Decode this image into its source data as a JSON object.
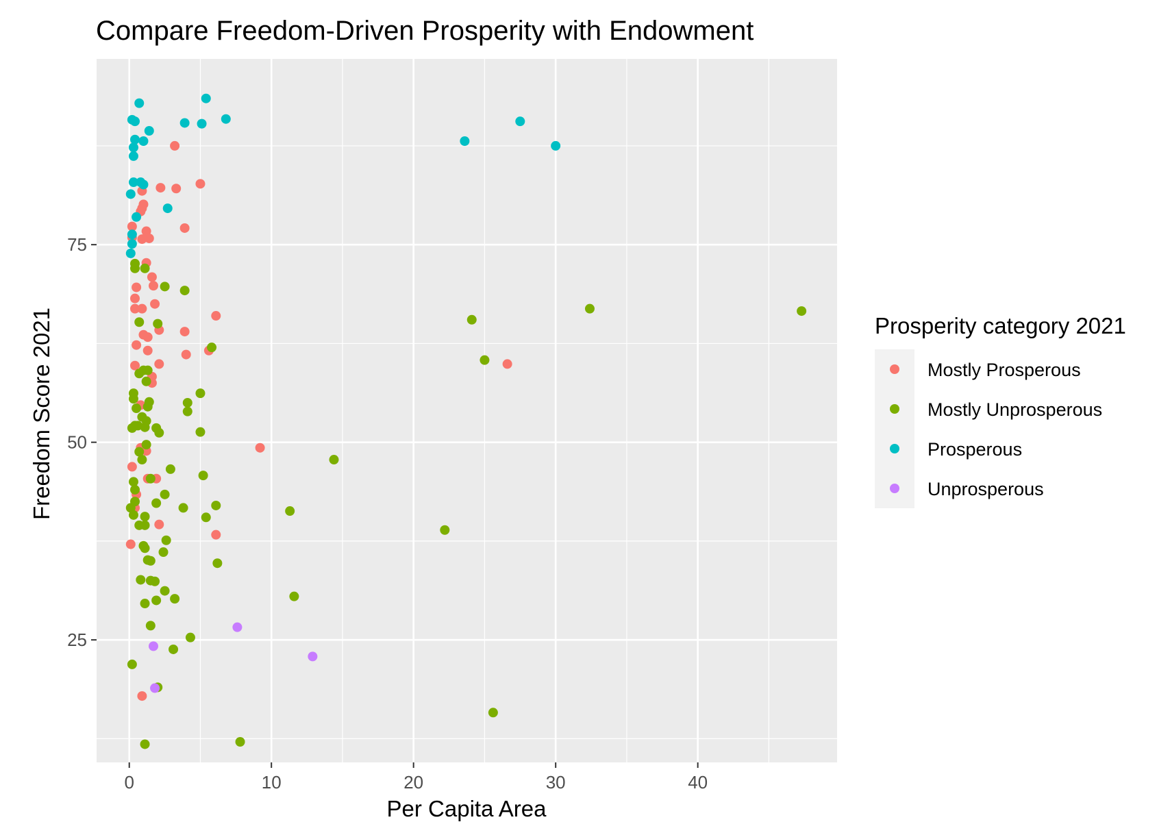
{
  "chart_data": {
    "type": "scatter",
    "title": "Compare Freedom-Driven Prosperity with Endowment",
    "xlabel": "Per Capita Area",
    "ylabel": "Freedom Score 2021",
    "xlim": [
      -2.3,
      49.8
    ],
    "ylim": [
      9.5,
      98.5
    ],
    "x_ticks": [
      0,
      10,
      20,
      30,
      40
    ],
    "y_ticks": [
      25,
      50,
      75
    ],
    "grid": true,
    "legend": {
      "title": "Prosperity category 2021",
      "placement": "right"
    },
    "series": [
      {
        "name": "Mostly Prosperous",
        "color": "#F8766D",
        "points": [
          [
            3.2,
            87.5
          ],
          [
            5.0,
            82.7
          ],
          [
            2.2,
            82.2
          ],
          [
            3.3,
            82.1
          ],
          [
            0.9,
            81.8
          ],
          [
            0.9,
            79.6
          ],
          [
            1.0,
            80.1
          ],
          [
            0.8,
            79.2
          ],
          [
            0.2,
            77.3
          ],
          [
            3.9,
            77.1
          ],
          [
            0.2,
            75.9
          ],
          [
            0.9,
            75.7
          ],
          [
            1.4,
            75.8
          ],
          [
            1.2,
            76.7
          ],
          [
            1.2,
            72.7
          ],
          [
            1.6,
            70.9
          ],
          [
            1.7,
            69.8
          ],
          [
            0.5,
            69.6
          ],
          [
            0.4,
            68.2
          ],
          [
            1.8,
            67.5
          ],
          [
            0.9,
            66.9
          ],
          [
            0.4,
            66.9
          ],
          [
            6.1,
            66.0
          ],
          [
            3.9,
            64.0
          ],
          [
            2.1,
            64.2
          ],
          [
            1.0,
            63.6
          ],
          [
            1.3,
            63.3
          ],
          [
            0.5,
            62.3
          ],
          [
            1.3,
            61.6
          ],
          [
            5.6,
            61.6
          ],
          [
            4.0,
            61.1
          ],
          [
            0.4,
            59.7
          ],
          [
            2.1,
            59.9
          ],
          [
            1.6,
            58.3
          ],
          [
            1.6,
            57.5
          ],
          [
            26.6,
            59.9
          ],
          [
            0.8,
            54.7
          ],
          [
            0.8,
            49.3
          ],
          [
            1.2,
            48.9
          ],
          [
            9.2,
            49.3
          ],
          [
            0.2,
            46.9
          ],
          [
            1.3,
            45.4
          ],
          [
            1.9,
            45.4
          ],
          [
            0.5,
            43.4
          ],
          [
            0.4,
            41.7
          ],
          [
            2.1,
            39.6
          ],
          [
            6.1,
            38.3
          ],
          [
            0.1,
            37.1
          ],
          [
            0.9,
            17.9
          ]
        ]
      },
      {
        "name": "Mostly Unprosperous",
        "color": "#7CAE00",
        "points": [
          [
            0.4,
            72.6
          ],
          [
            0.4,
            72.0
          ],
          [
            1.1,
            72.0
          ],
          [
            2.5,
            69.7
          ],
          [
            3.9,
            69.2
          ],
          [
            0.7,
            65.2
          ],
          [
            2.0,
            65.0
          ],
          [
            24.1,
            65.5
          ],
          [
            32.4,
            66.9
          ],
          [
            47.3,
            66.6
          ],
          [
            5.8,
            62.0
          ],
          [
            25.0,
            60.4
          ],
          [
            1.3,
            59.1
          ],
          [
            1.0,
            59.1
          ],
          [
            0.7,
            58.7
          ],
          [
            1.2,
            57.7
          ],
          [
            0.3,
            56.2
          ],
          [
            5.0,
            56.2
          ],
          [
            0.3,
            55.5
          ],
          [
            1.4,
            55.1
          ],
          [
            4.1,
            55.0
          ],
          [
            1.3,
            54.5
          ],
          [
            0.5,
            54.3
          ],
          [
            4.1,
            53.9
          ],
          [
            0.9,
            53.2
          ],
          [
            1.2,
            52.7
          ],
          [
            0.4,
            52.1
          ],
          [
            0.6,
            52.1
          ],
          [
            0.2,
            51.8
          ],
          [
            1.1,
            51.9
          ],
          [
            1.9,
            51.8
          ],
          [
            2.1,
            51.2
          ],
          [
            5.0,
            51.3
          ],
          [
            1.2,
            49.7
          ],
          [
            0.7,
            48.8
          ],
          [
            0.9,
            47.8
          ],
          [
            14.4,
            47.8
          ],
          [
            2.9,
            46.6
          ],
          [
            5.2,
            45.8
          ],
          [
            1.5,
            45.4
          ],
          [
            0.3,
            45.0
          ],
          [
            0.4,
            44.0
          ],
          [
            2.5,
            43.4
          ],
          [
            0.4,
            42.5
          ],
          [
            1.9,
            42.3
          ],
          [
            6.1,
            42.0
          ],
          [
            0.1,
            41.7
          ],
          [
            3.8,
            41.7
          ],
          [
            11.3,
            41.3
          ],
          [
            0.3,
            40.8
          ],
          [
            1.1,
            40.6
          ],
          [
            5.4,
            40.5
          ],
          [
            0.7,
            39.5
          ],
          [
            1.1,
            39.5
          ],
          [
            22.2,
            38.9
          ],
          [
            2.6,
            37.6
          ],
          [
            1.0,
            36.9
          ],
          [
            1.1,
            36.6
          ],
          [
            2.4,
            36.1
          ],
          [
            1.3,
            35.1
          ],
          [
            1.5,
            35.0
          ],
          [
            6.2,
            34.7
          ],
          [
            0.8,
            32.6
          ],
          [
            1.5,
            32.5
          ],
          [
            1.8,
            32.4
          ],
          [
            2.5,
            31.2
          ],
          [
            11.6,
            30.5
          ],
          [
            1.9,
            30.0
          ],
          [
            3.2,
            30.2
          ],
          [
            1.1,
            29.6
          ],
          [
            1.5,
            26.8
          ],
          [
            4.3,
            25.3
          ],
          [
            3.1,
            23.8
          ],
          [
            0.2,
            21.9
          ],
          [
            2.0,
            19.0
          ],
          [
            25.6,
            15.8
          ],
          [
            7.8,
            12.1
          ],
          [
            1.1,
            11.8
          ]
        ]
      },
      {
        "name": "Prosperous",
        "color": "#00BFC4",
        "points": [
          [
            0.7,
            92.9
          ],
          [
            5.4,
            93.5
          ],
          [
            0.2,
            90.8
          ],
          [
            0.4,
            90.6
          ],
          [
            3.9,
            90.4
          ],
          [
            5.1,
            90.3
          ],
          [
            6.8,
            90.9
          ],
          [
            27.5,
            90.6
          ],
          [
            1.4,
            89.4
          ],
          [
            0.4,
            88.3
          ],
          [
            1.0,
            88.1
          ],
          [
            23.6,
            88.1
          ],
          [
            30.0,
            87.5
          ],
          [
            0.3,
            87.3
          ],
          [
            0.3,
            86.2
          ],
          [
            0.3,
            82.9
          ],
          [
            0.8,
            82.9
          ],
          [
            1.0,
            82.6
          ],
          [
            0.1,
            81.4
          ],
          [
            2.7,
            79.6
          ],
          [
            0.5,
            78.5
          ],
          [
            0.2,
            76.3
          ],
          [
            0.2,
            75.1
          ],
          [
            0.1,
            73.9
          ]
        ]
      },
      {
        "name": "Unprosperous",
        "color": "#C77CFF",
        "points": [
          [
            7.6,
            26.6
          ],
          [
            1.7,
            24.2
          ],
          [
            12.9,
            22.9
          ],
          [
            1.8,
            18.9
          ]
        ]
      }
    ]
  }
}
